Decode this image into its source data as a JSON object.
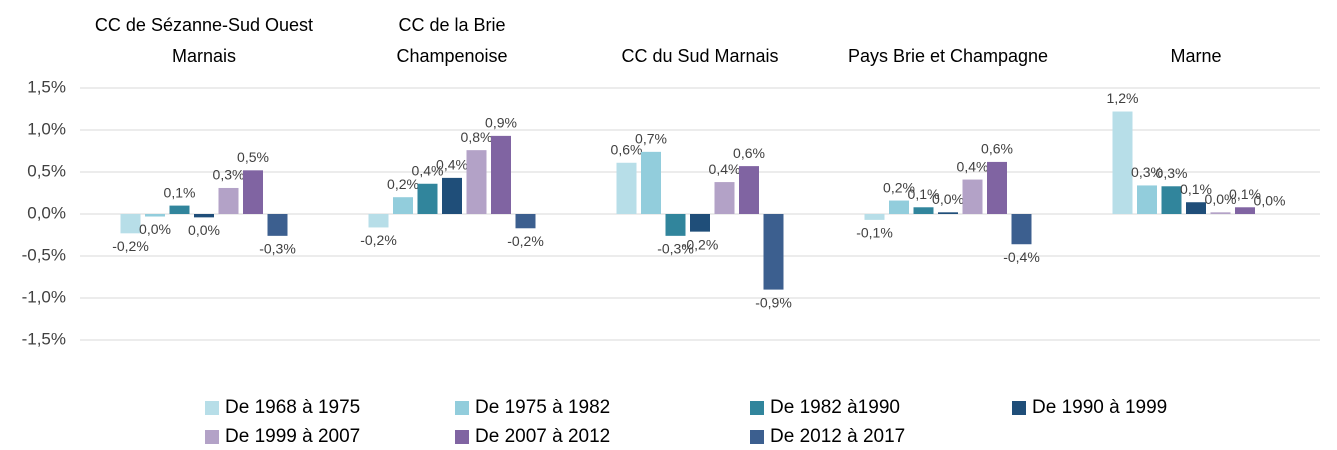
{
  "chart_data": {
    "type": "bar",
    "categories": [
      "CC de Sézanne-Sud Ouest Marnais",
      "CC de la Brie Champenoise",
      "CC du Sud Marnais",
      "Pays Brie et Champagne",
      "Marne"
    ],
    "series": [
      {
        "name": "De 1968 à 1975",
        "color": "#b7dee8",
        "values": [
          -0.23,
          -0.16,
          0.61,
          -0.07,
          1.22
        ],
        "value_labels": [
          "-0,2%",
          "-0,2%",
          "0,6%",
          "-0,1%",
          "1,2%"
        ]
      },
      {
        "name": "De 1975 à 1982",
        "color": "#92cddc",
        "values": [
          -0.03,
          0.2,
          0.74,
          0.16,
          0.34
        ],
        "value_labels": [
          "0,0%",
          "0,2%",
          "0,7%",
          "0,2%",
          "0,3%"
        ]
      },
      {
        "name": "De 1982 à1990",
        "color": "#31859c",
        "values": [
          0.1,
          0.36,
          -0.26,
          0.08,
          0.33
        ],
        "value_labels": [
          "0,1%",
          "0,4%",
          "-0,3%",
          "0,1%",
          "0,3%"
        ]
      },
      {
        "name": "De 1990 à 1999",
        "color": "#1f4e79",
        "values": [
          -0.04,
          0.43,
          -0.21,
          0.02,
          0.14
        ],
        "value_labels": [
          "0,0%",
          "0,4%",
          "-0,2%",
          "0,0%",
          "0,1%"
        ]
      },
      {
        "name": "De 1999 à 2007",
        "color": "#b3a2c7",
        "values": [
          0.31,
          0.76,
          0.38,
          0.41,
          0.02
        ],
        "value_labels": [
          "0,3%",
          "0,8%",
          "0,4%",
          "0,4%",
          "0,0%"
        ]
      },
      {
        "name": "De 2007 à 2012",
        "color": "#8064a2",
        "values": [
          0.52,
          0.93,
          0.57,
          0.62,
          0.08
        ],
        "value_labels": [
          "0,5%",
          "0,9%",
          "0,6%",
          "0,6%",
          "0,1%"
        ]
      },
      {
        "name": "De 2012 à 2017",
        "color": "#3c5f8f",
        "values": [
          -0.26,
          -0.17,
          -0.9,
          -0.36,
          0.0
        ],
        "value_labels": [
          "-0,3%",
          "-0,2%",
          "-0,9%",
          "-0,4%",
          "0,0%"
        ]
      }
    ],
    "ylim": [
      -1.5,
      1.5
    ],
    "yticks": [
      {
        "value": -1.5,
        "label": "-1,5%"
      },
      {
        "value": -1.0,
        "label": "-1,0%"
      },
      {
        "value": -0.5,
        "label": "-0,5%"
      },
      {
        "value": 0,
        "label": "0,0%"
      },
      {
        "value": 0.5,
        "label": "0,5%"
      },
      {
        "value": 1.0,
        "label": "1,0%"
      },
      {
        "value": 1.5,
        "label": "1,5%"
      }
    ],
    "grid": true
  }
}
